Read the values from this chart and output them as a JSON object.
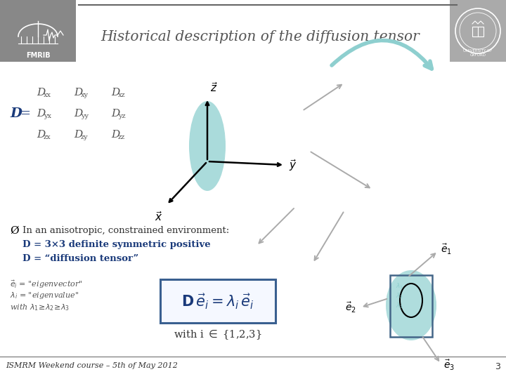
{
  "title": "Historical description of the diffusion tensor",
  "bg_color": "#ffffff",
  "footer_text": "ISMRM Weekend course – 5th of May 2012",
  "page_number": "3",
  "teal_color": "#8ecfcf",
  "gray_arrow": "#aaaaaa",
  "blue_text": "#1a3a7a",
  "eq_box_color": "#3a6090",
  "matrix_color": "#555555",
  "header_line_color": "#999999",
  "fmrib_bg": "#888888",
  "univ_bg": "#aaaaaa"
}
